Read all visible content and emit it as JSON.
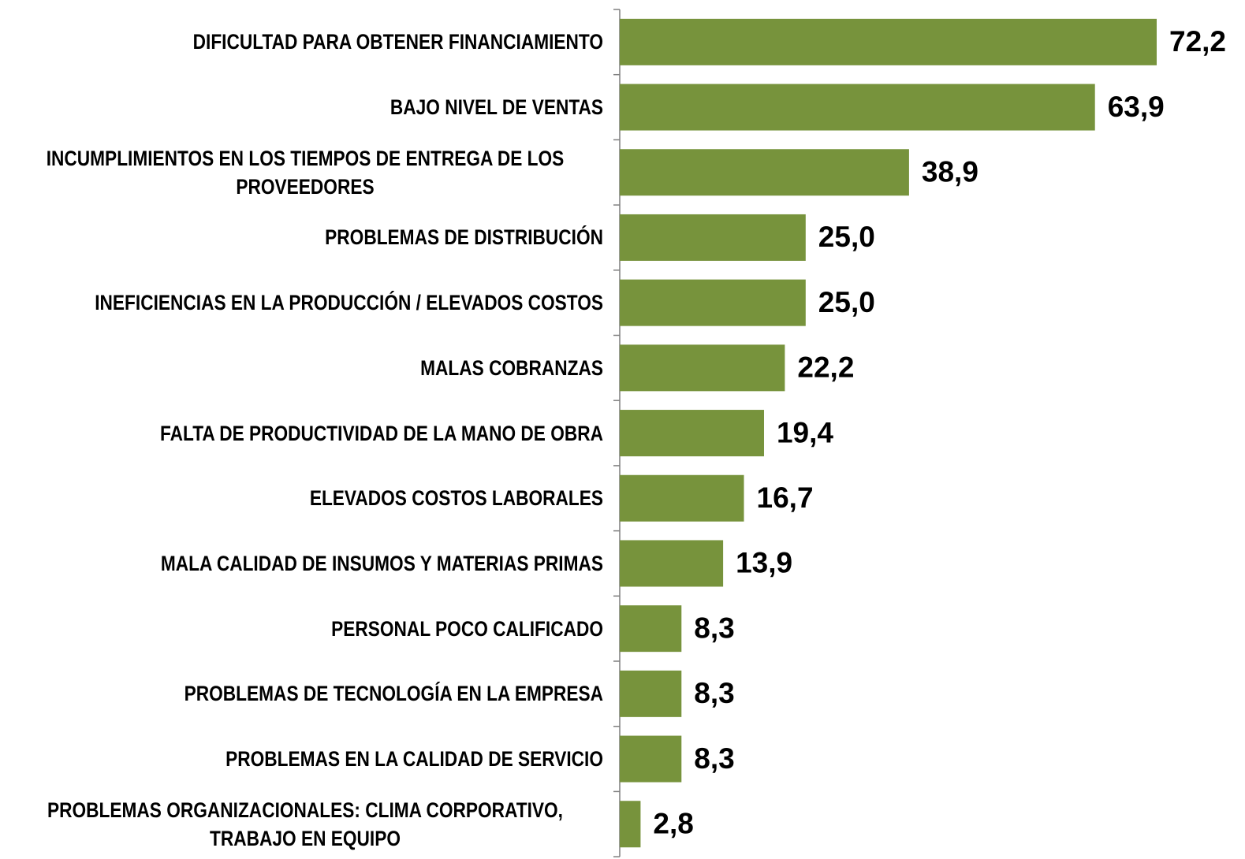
{
  "chart_data": {
    "type": "bar",
    "orientation": "horizontal",
    "categories": [
      "DIFICULTAD PARA OBTENER FINANCIAMIENTO",
      "BAJO NIVEL DE VENTAS",
      "INCUMPLIMIENTOS EN LOS TIEMPOS DE ENTREGA DE LOS PROVEEDORES",
      "PROBLEMAS DE DISTRIBUCIÓN",
      "INEFICIENCIAS EN LA PRODUCCIÓN / ELEVADOS COSTOS",
      "MALAS COBRANZAS",
      "FALTA DE PRODUCTIVIDAD DE LA MANO DE OBRA",
      "ELEVADOS COSTOS LABORALES",
      "MALA CALIDAD DE INSUMOS Y MATERIAS PRIMAS",
      "PERSONAL POCO CALIFICADO",
      "PROBLEMAS DE TECNOLOGÍA EN LA EMPRESA",
      "PROBLEMAS EN LA CALIDAD DE SERVICIO",
      "PROBLEMAS ORGANIZACIONALES: CLIMA CORPORATIVO, TRABAJO EN EQUIPO"
    ],
    "values": [
      72.2,
      63.9,
      38.9,
      25.0,
      25.0,
      22.2,
      19.4,
      16.7,
      13.9,
      8.3,
      8.3,
      8.3,
      2.8
    ],
    "value_labels": [
      "72,2",
      "63,9",
      "38,9",
      "25,0",
      "25,0",
      "22,2",
      "19,4",
      "16,7",
      "13,9",
      "8,3",
      "8,3",
      "8,3",
      "2,8"
    ],
    "color": "#77933c"
  }
}
